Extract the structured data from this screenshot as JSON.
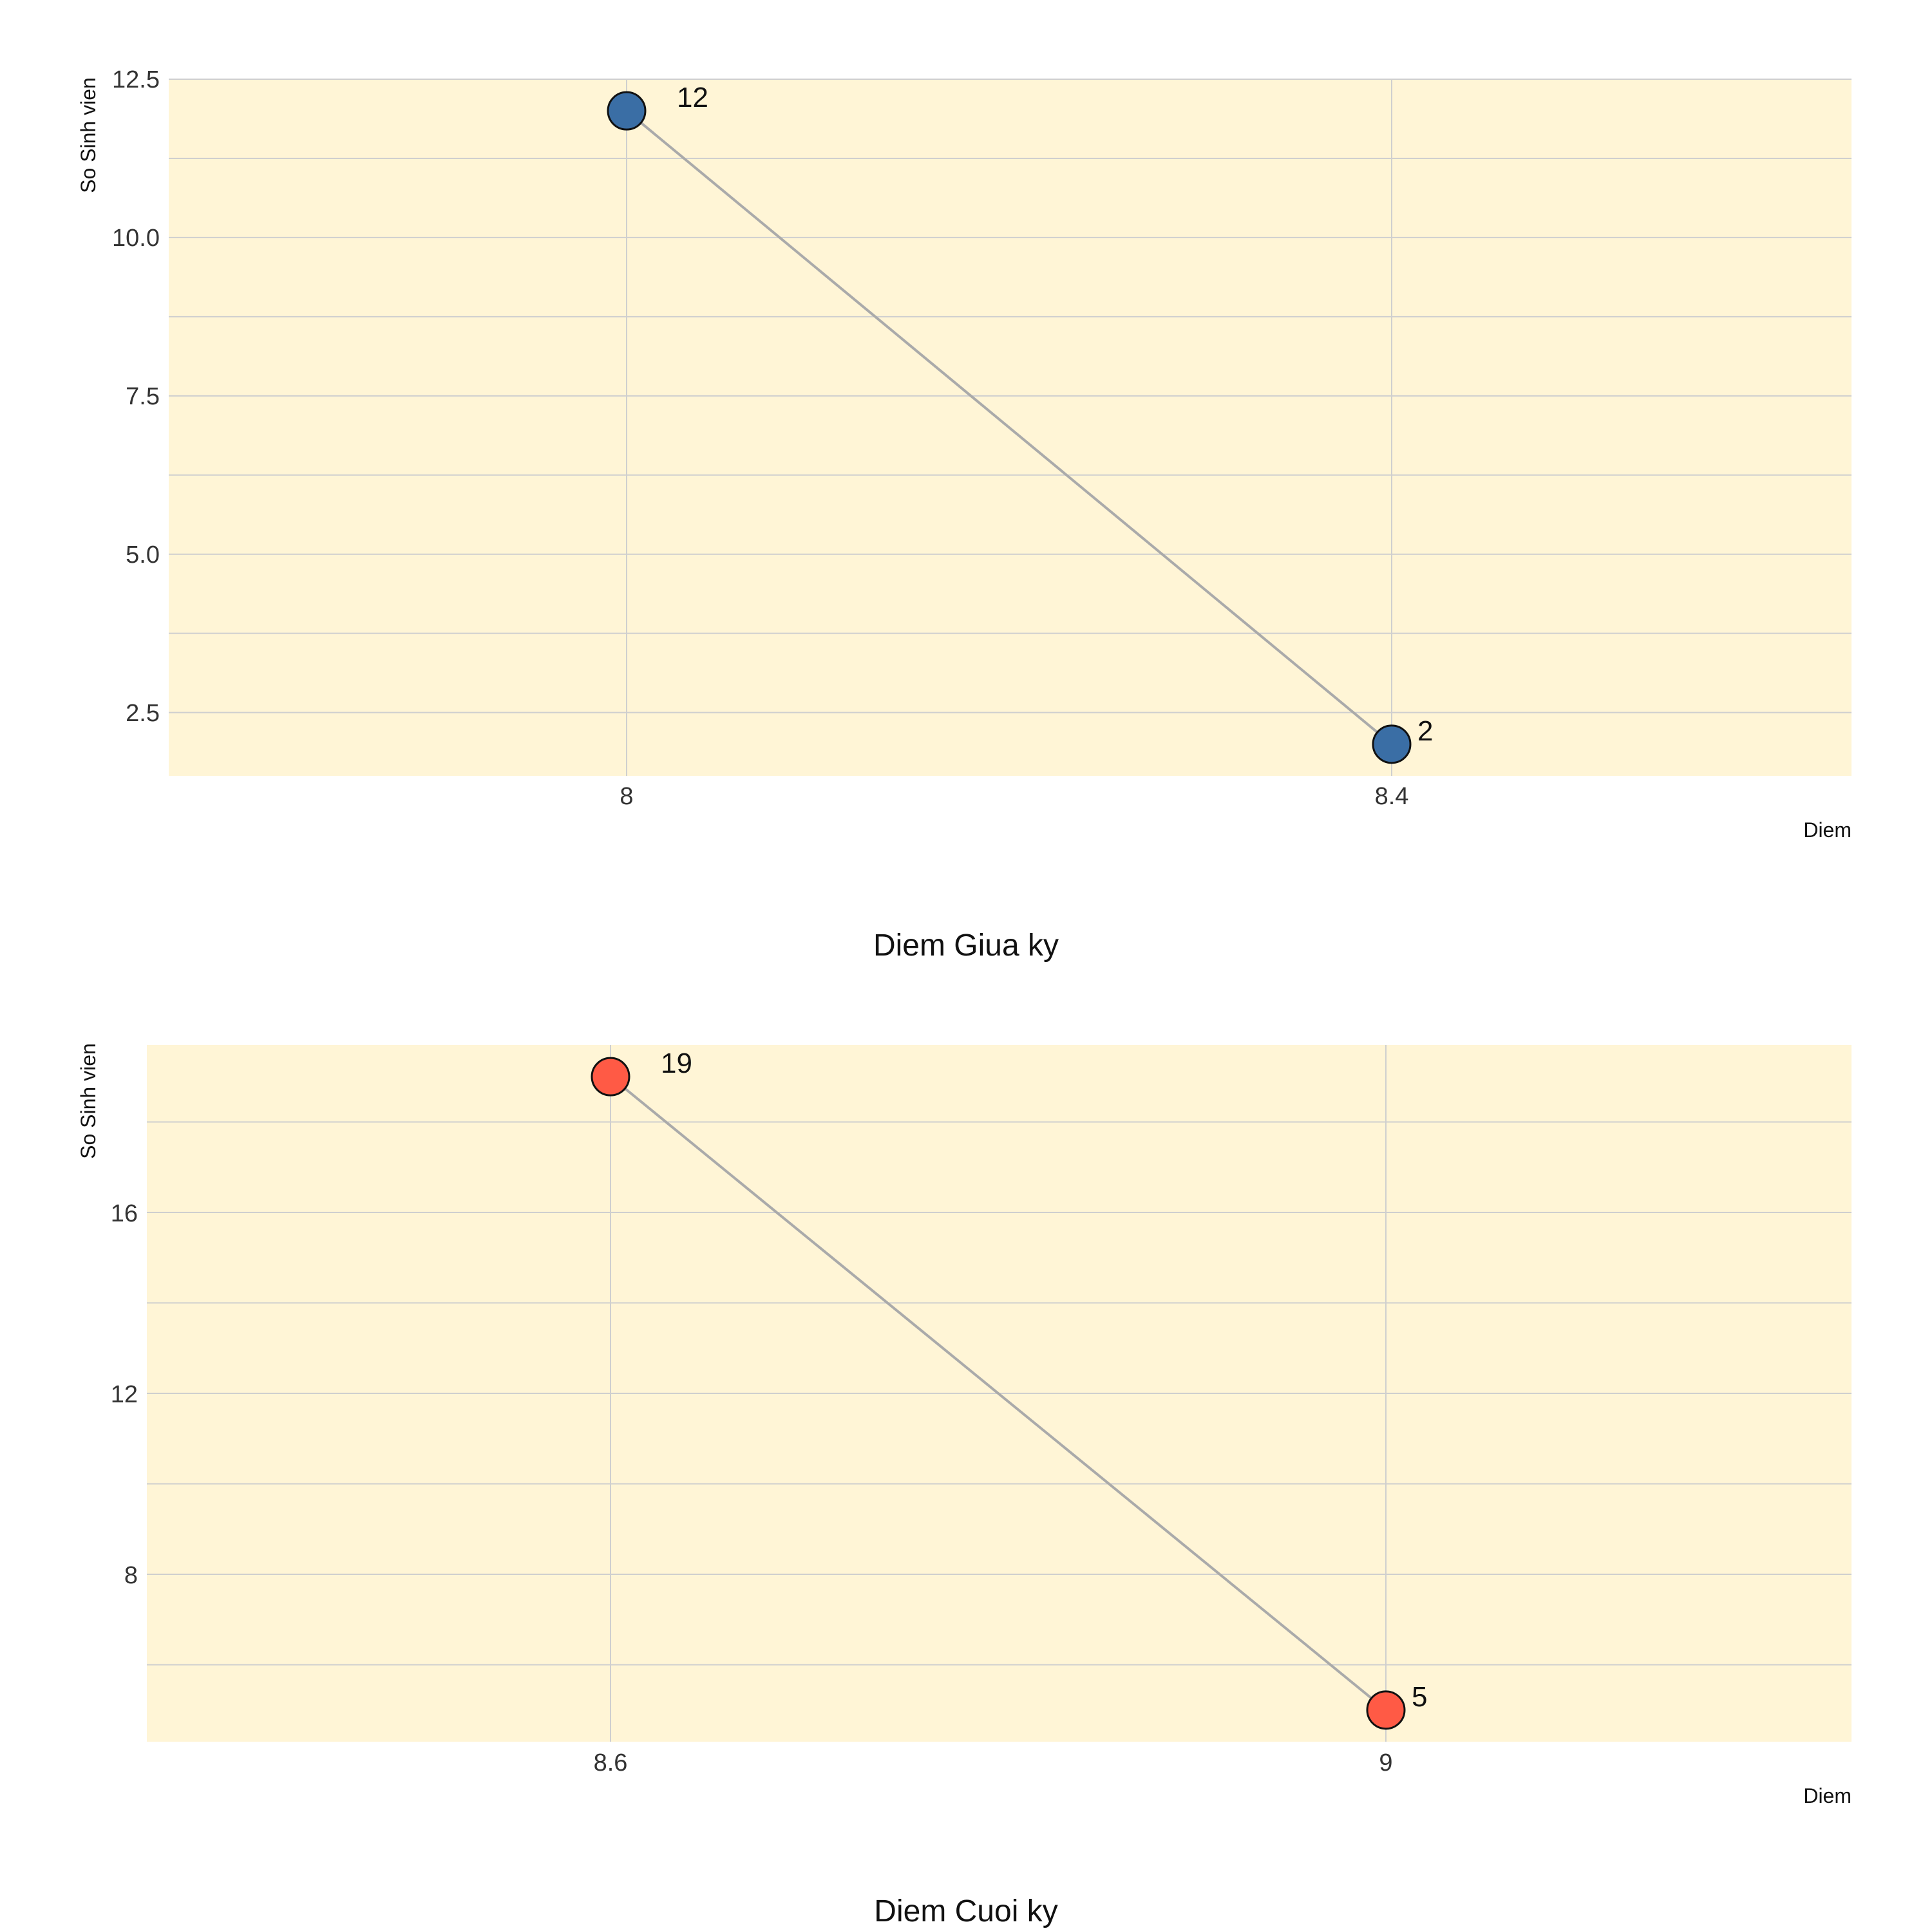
{
  "chart_data": [
    {
      "type": "line",
      "title": "Diem Giua ky",
      "xlabel": "Diem",
      "ylabel": "So Sinh vien",
      "categories": [
        "8",
        "8.4"
      ],
      "values": [
        12,
        2
      ],
      "ylim": [
        1.5,
        12.5
      ],
      "yticks": [
        "2.5",
        "5.0",
        "7.5",
        "10.0",
        "12.5"
      ],
      "grid": true,
      "colors": {
        "marker": "#3a6ea5",
        "line": "#aaaaaa",
        "plot_bg": "#fff5d6"
      }
    },
    {
      "type": "line",
      "title": "Diem Cuoi ky",
      "xlabel": "Diem",
      "ylabel": "So Sinh vien",
      "categories": [
        "8.6",
        "9"
      ],
      "values": [
        19,
        5
      ],
      "ylim": [
        4.3,
        19.7
      ],
      "yticks": [
        "8",
        "12",
        "16"
      ],
      "grid": true,
      "colors": {
        "marker": "#ff5a45",
        "line": "#aaaaaa",
        "plot_bg": "#fff5d6"
      }
    }
  ]
}
